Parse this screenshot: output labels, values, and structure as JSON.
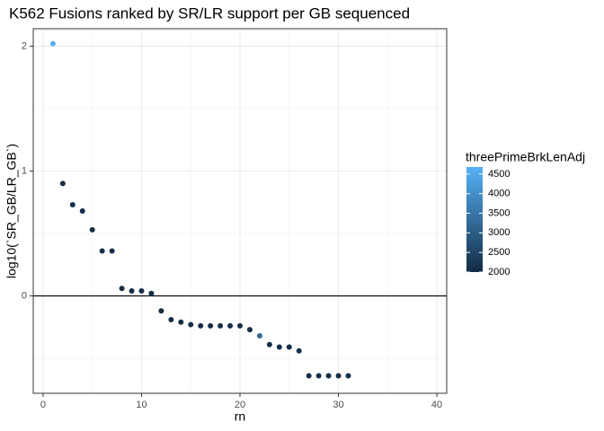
{
  "chart_data": {
    "type": "scatter",
    "title": "K562 Fusions ranked by SR/LR support per GB sequenced",
    "x_label": "rn",
    "y_label": "log10(`SR_GB/LR_GB`)",
    "x": [
      1,
      2,
      3,
      4,
      5,
      6,
      7,
      8,
      9,
      10,
      11,
      12,
      13,
      14,
      15,
      16,
      17,
      18,
      19,
      20,
      21,
      22,
      23,
      24,
      25,
      26,
      27,
      28,
      29,
      30,
      31
    ],
    "values": [
      2.02,
      0.9,
      0.73,
      0.68,
      0.53,
      0.36,
      0.36,
      0.06,
      0.04,
      0.04,
      0.02,
      -0.12,
      -0.19,
      -0.21,
      -0.23,
      -0.24,
      -0.24,
      -0.24,
      -0.24,
      -0.24,
      -0.27,
      -0.32,
      -0.39,
      -0.41,
      -0.41,
      -0.44,
      -0.64,
      -0.64,
      -0.64,
      -0.64,
      -0.64
    ],
    "color_values": [
      4680,
      2050,
      2050,
      2050,
      2050,
      2100,
      2100,
      2050,
      2050,
      2050,
      2050,
      2050,
      2050,
      2050,
      2050,
      2050,
      2050,
      2050,
      2050,
      2050,
      2050,
      3200,
      2050,
      2050,
      2050,
      2050,
      2050,
      2050,
      2050,
      2050,
      2050
    ],
    "xlim": [
      -1,
      41
    ],
    "xticks": [
      0,
      10,
      20,
      30,
      40
    ],
    "ylim": [
      -0.78,
      2.14
    ],
    "yticks": [
      0,
      1,
      2
    ],
    "hline": 0,
    "grid": true,
    "color_scale": {
      "name": "threePrimeBrkLenAdj",
      "low": "#132B43",
      "high": "#56B1F7",
      "limits": [
        2000,
        4680
      ],
      "ticks": [
        2000,
        2500,
        3000,
        3500,
        4000,
        4500
      ]
    }
  }
}
